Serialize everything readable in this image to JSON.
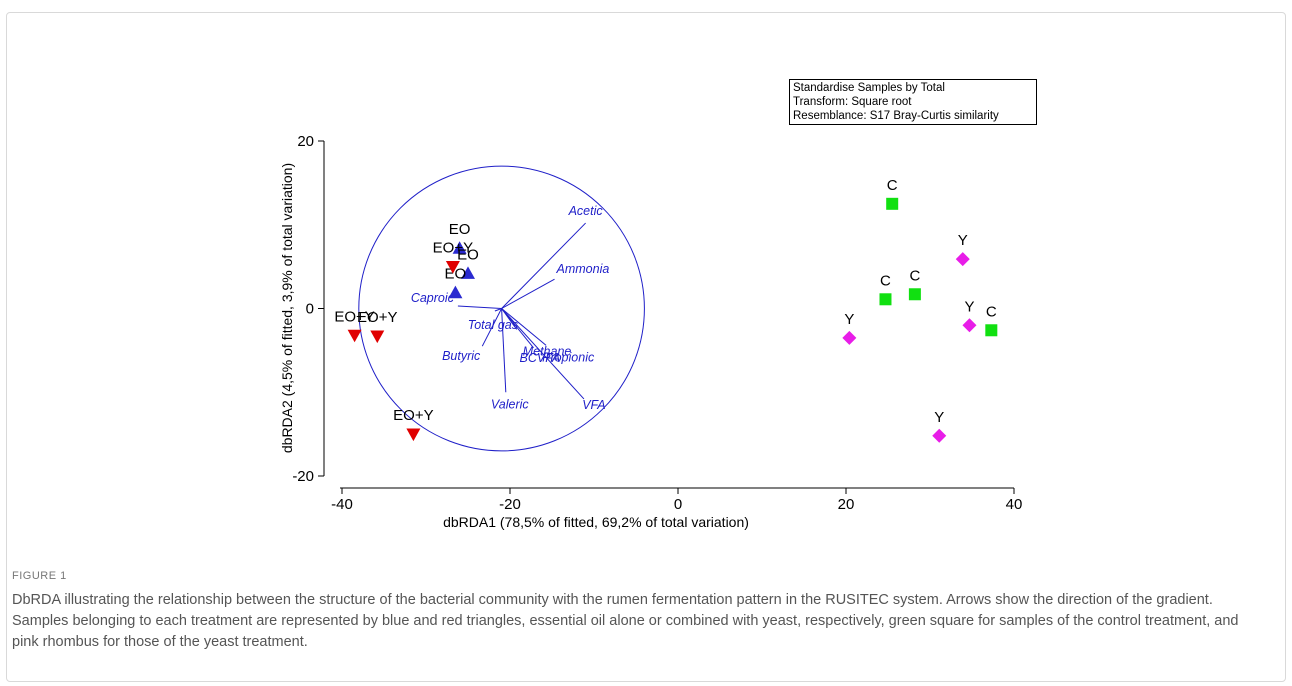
{
  "figure_label": "FIGURE 1",
  "caption": "DbRDA illustrating the relationship between the structure of the bacterial community with the rumen fermentation pattern in the RUSITEC system. Arrows show the direction of the gradient. Samples belonging to each treatment are represented by blue and red triangles, essential oil alone or combined with yeast, respectively, green square for samples of the control treatment, and pink rhombus for those of the yeast treatment.",
  "info_box": {
    "line1": "Standardise Samples by Total",
    "line2": "Transform: Square root",
    "line3": "Resemblance: S17 Bray-Curtis similarity"
  },
  "colors": {
    "EO": "#2a2ad0",
    "EO+Y": "#e00000",
    "C": "#11e011",
    "Y": "#e81de8",
    "vectors": "#1f1fc8",
    "axis": "#000000"
  },
  "chart_data": {
    "type": "scatter",
    "xlabel": "dbRDA1 (78,5% of fitted, 69,2% of total variation)",
    "ylabel": "dbRDA2 (4,5% of fitted, 3,9% of total variation)",
    "xlim": [
      -42,
      42
    ],
    "ylim": [
      -20,
      20
    ],
    "xticks": [
      -40,
      -20,
      0,
      20,
      40
    ],
    "yticks": [
      -20,
      0,
      20
    ],
    "series": [
      {
        "name": "EO",
        "marker": "triangle-up",
        "points": [
          {
            "x": -26,
            "y": 7.2,
            "label": "EO"
          },
          {
            "x": -25,
            "y": 4.2,
            "label": "EO"
          },
          {
            "x": -26.5,
            "y": 1.9,
            "label": "EO"
          }
        ]
      },
      {
        "name": "EO+Y",
        "marker": "triangle-down",
        "points": [
          {
            "x": -26.8,
            "y": 5.0,
            "label": "EO+Y"
          },
          {
            "x": -38.5,
            "y": -3.2,
            "label": "EO+Y"
          },
          {
            "x": -35.8,
            "y": -3.3,
            "label": "EO+Y"
          },
          {
            "x": -31.5,
            "y": -15.0,
            "label": "EO+Y"
          }
        ]
      },
      {
        "name": "C",
        "marker": "square",
        "points": [
          {
            "x": 25.5,
            "y": 12.5,
            "label": "C"
          },
          {
            "x": 24.7,
            "y": 1.1,
            "label": "C"
          },
          {
            "x": 28.2,
            "y": 1.7,
            "label": "C"
          },
          {
            "x": 37.3,
            "y": -2.6,
            "label": "C"
          }
        ]
      },
      {
        "name": "Y",
        "marker": "diamond",
        "points": [
          {
            "x": 20.4,
            "y": -3.5,
            "label": "Y"
          },
          {
            "x": 33.9,
            "y": 5.9,
            "label": "Y"
          },
          {
            "x": 34.7,
            "y": -2.0,
            "label": "Y"
          },
          {
            "x": 31.1,
            "y": -15.2,
            "label": "Y"
          }
        ]
      }
    ],
    "vector_origin": {
      "x": -21,
      "y": 0
    },
    "circle_radius": 17,
    "vectors": [
      {
        "label": "Acetic",
        "x": -11,
        "y": 10.2
      },
      {
        "label": "Ammonia",
        "x": -14.7,
        "y": 3.5
      },
      {
        "label": "Caproic",
        "x": -26.2,
        "y": 0.3
      },
      {
        "label": "Total gas",
        "x": -21.8,
        "y": -0.3
      },
      {
        "label": "Methane",
        "x": -19.2,
        "y": -2.5
      },
      {
        "label": "Propionic",
        "x": -15.7,
        "y": -4.4
      },
      {
        "label": "BCVFA",
        "x": -17.2,
        "y": -4.7
      },
      {
        "label": "Butyric",
        "x": -23.3,
        "y": -4.5
      },
      {
        "label": "Valeric",
        "x": -20.5,
        "y": -10.0
      },
      {
        "label": "VFA",
        "x": -11.2,
        "y": -10.8
      }
    ]
  }
}
